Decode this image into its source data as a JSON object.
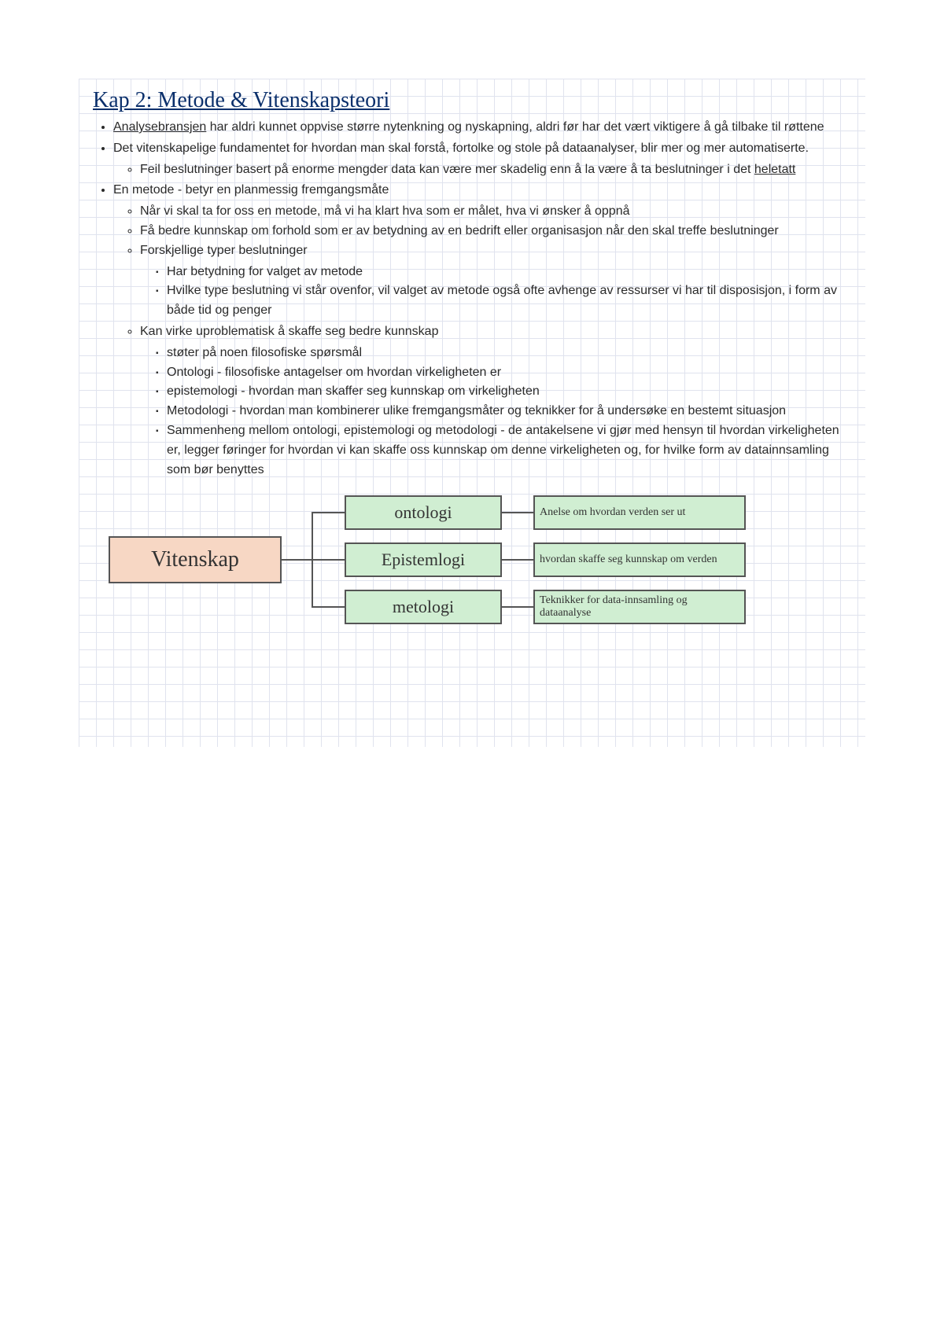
{
  "title": "Kap 2: Metode & Vitenskapsteori",
  "bullets": {
    "b1a": "Analysebransjen",
    "b1b": " har aldri kunnet oppvise større nytenkning og nyskapning, aldri før har det vært viktigere å gå tilbake til røttene",
    "b2": "Det vitenskapelige fundamentet for hvordan man skal forstå, fortolke og stole på dataanalyser, blir mer og mer automatiserte.",
    "b2s1a": "Feil beslutninger basert på enorme mengder data kan være mer skadelig enn å la være å ta beslutninger i det ",
    "b2s1b": "heletatt",
    "b3": "En metode - betyr en planmessig fremgangsmåte",
    "b3s1": "Når vi skal ta for oss en metode, må vi ha klart hva som er målet, hva vi ønsker å oppnå",
    "b3s2": "Få bedre kunnskap om forhold som er av betydning av en bedrift eller organisasjon når den skal treffe beslutninger",
    "b3s3": "Forskjellige typer beslutninger",
    "b3s3a": "Har betydning for valget av metode",
    "b3s3b": "Hvilke type beslutning vi står ovenfor, vil valget av metode også ofte avhenge av ressurser vi har til disposisjon, i form av både tid og penger",
    "b3s4": "Kan virke uproblematisk å skaffe seg bedre kunnskap",
    "b3s4a": "støter på noen filosofiske spørsmål",
    "b3s4b": "Ontologi - filosofiske antagelser om hvordan virkeligheten er",
    "b3s4c": "epistemologi - hvordan man skaffer seg kunnskap om virkeligheten",
    "b3s4d": "Metodologi - hvordan man kombinerer ulike fremgangsmåter og teknikker for å undersøke en bestemt situasjon",
    "b3s4e": "Sammenheng mellom ontologi, epistemologi og metodologi - de antakelsene vi gjør med hensyn til hvordan virkeligheten er, legger føringer for hvordan vi kan skaffe oss kunnskap om denne virkeligheten og, for hvilke form av datainnsamling som bør benyttes"
  },
  "diagram": {
    "root": "Vitenskap",
    "mid": {
      "ont": "ontologi",
      "epi": "Epistemlogi",
      "met": "metologi"
    },
    "right": {
      "ont": "Anelse om hvordan verden ser ut",
      "epi": "hvordan skaffe seg kunnskap om verden",
      "met": "Teknikker for data-innsamling og dataanalyse"
    },
    "colors": {
      "root_bg": "#f7d7c4",
      "node_bg": "#d0eed2",
      "border": "#555555",
      "grid": "#d4d8e8",
      "title": "#0a2f6b"
    }
  }
}
